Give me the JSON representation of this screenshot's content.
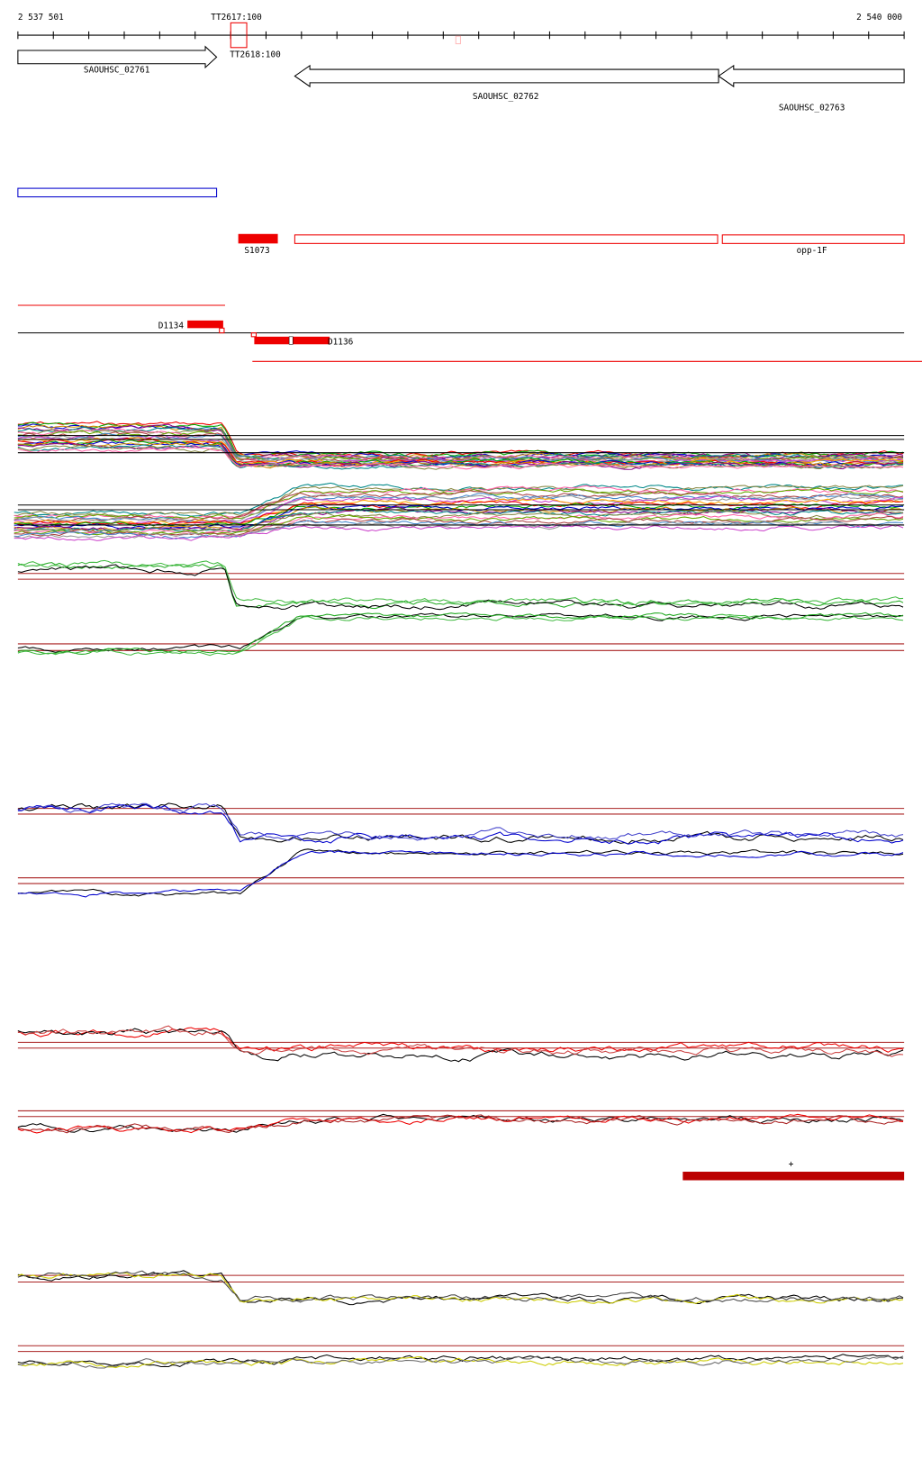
{
  "ruler": {
    "start": "2 537 501",
    "end": "2 540 000"
  },
  "markers": [
    "TT2617:100",
    "TT2618:100"
  ],
  "genes": [
    "SAOUHSC_02761",
    "SAOUHSC_02762",
    "SAOUHSC_02763"
  ],
  "features": {
    "segment": "S1073",
    "operon": "opp-1F",
    "left_deletion": "D1134",
    "right_deletion": "D1136"
  },
  "strand": "+"
}
